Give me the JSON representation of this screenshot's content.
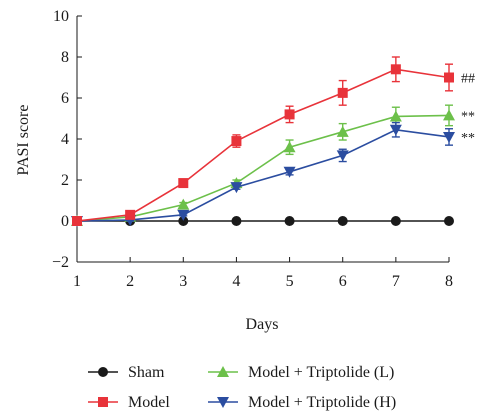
{
  "chart_data": {
    "type": "line",
    "title": "",
    "xlabel": "Days",
    "ylabel": "PASI score",
    "xlim": [
      1,
      8
    ],
    "ylim": [
      -2,
      10
    ],
    "x": [
      1,
      2,
      3,
      4,
      5,
      6,
      7,
      8
    ],
    "xticks": [
      "1",
      "2",
      "3",
      "4",
      "5",
      "6",
      "7",
      "8"
    ],
    "yticks": [
      "−2",
      "0",
      "2",
      "4",
      "6",
      "8",
      "10"
    ],
    "ytick_values": [
      -2,
      0,
      2,
      4,
      6,
      8,
      10
    ],
    "grid": false,
    "legend_placement": "bottom",
    "series": [
      {
        "name": "Sham",
        "color": "#1a1a1a",
        "marker": "circle",
        "values": [
          0,
          0,
          0,
          0,
          0,
          0,
          0,
          0
        ],
        "errors": [
          0,
          0,
          0,
          0,
          0,
          0,
          0,
          0
        ]
      },
      {
        "name": "Model",
        "color": "#e8333a",
        "marker": "square",
        "values": [
          0,
          0.3,
          1.85,
          3.9,
          5.2,
          6.25,
          7.4,
          7.0
        ],
        "errors": [
          0,
          0.1,
          0.1,
          0.3,
          0.4,
          0.6,
          0.6,
          0.65
        ],
        "annotation": "##"
      },
      {
        "name": "Model + Triptolide (L)",
        "color": "#6cc04a",
        "marker": "triangle-up",
        "values": [
          0,
          0.2,
          0.8,
          1.85,
          3.6,
          4.35,
          5.1,
          5.15
        ],
        "errors": [
          0,
          0.05,
          0.1,
          0.15,
          0.35,
          0.4,
          0.45,
          0.5
        ],
        "annotation": "**"
      },
      {
        "name": "Model + Triptolide (H)",
        "color": "#2b4da0",
        "marker": "triangle-down",
        "values": [
          0,
          0.05,
          0.3,
          1.65,
          2.4,
          3.2,
          4.45,
          4.1
        ],
        "errors": [
          0,
          0.05,
          0.05,
          0.1,
          0.15,
          0.3,
          0.35,
          0.4
        ],
        "annotation": "**"
      }
    ]
  }
}
